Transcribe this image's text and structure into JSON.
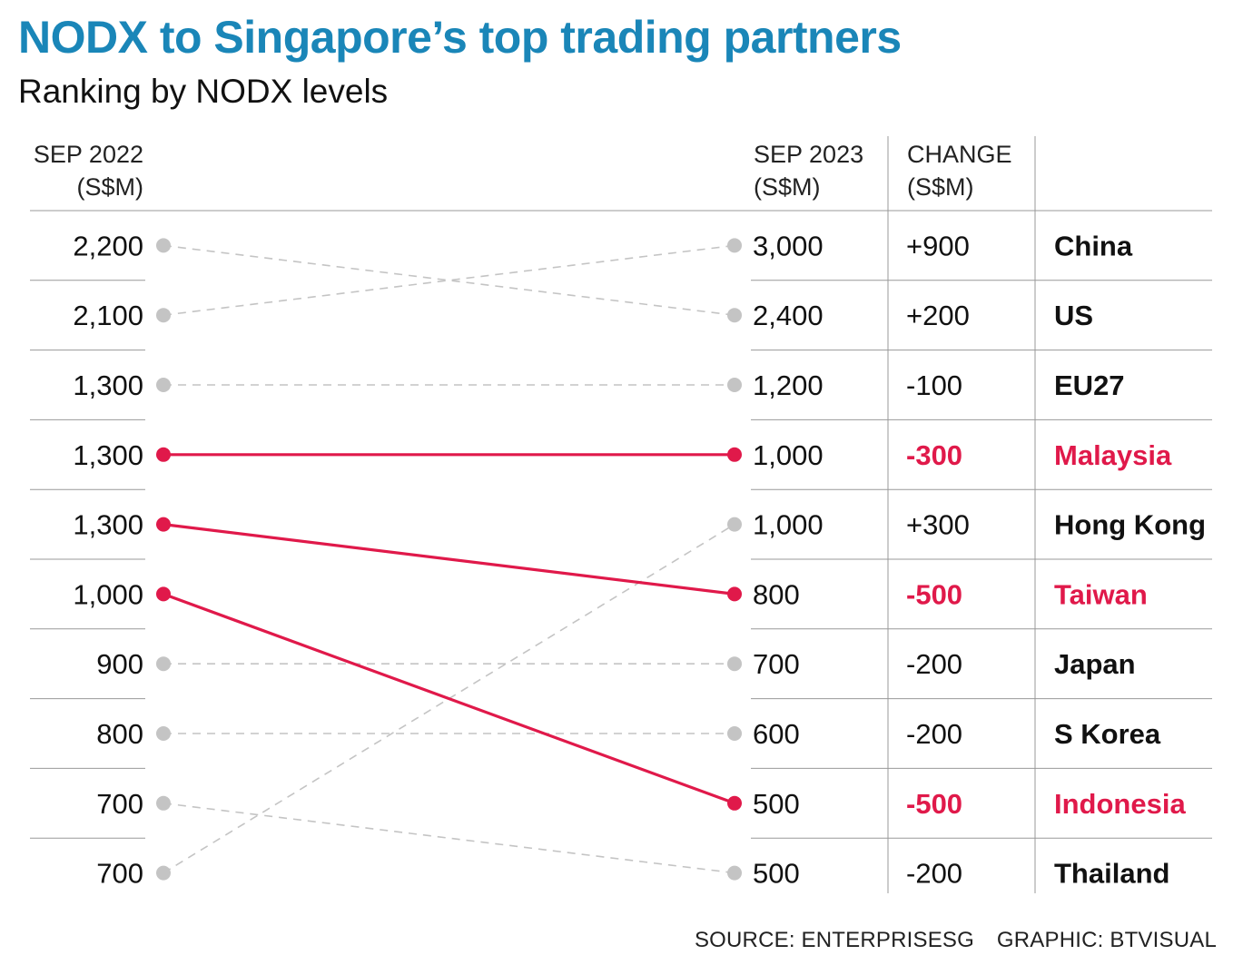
{
  "title": "NODX to Singapore’s top trading partners",
  "subtitle": "Ranking by NODX levels",
  "headers": {
    "left_line1": "SEP 2022",
    "left_line2": "(S$M)",
    "mid_line1": "SEP 2023",
    "mid_line2": "(S$M)",
    "change_line1": "CHANGE",
    "change_line2": "(S$M)"
  },
  "colors": {
    "highlight": "#e0194a",
    "muted": "#c4c4c4",
    "title": "#1a86b8",
    "rule": "#999999"
  },
  "chart_data": {
    "type": "slope",
    "title": "NODX to Singapore’s top trading partners",
    "subtitle": "Ranking by NODX levels",
    "left_ranking_2022": [
      "2,200",
      "2,100",
      "1,300",
      "1,300",
      "1,300",
      "1,000",
      "900",
      "800",
      "700",
      "700"
    ],
    "right_ranking_2023": [
      "3,000",
      "2,400",
      "1,200",
      "1,000",
      "1,000",
      "800",
      "700",
      "600",
      "500",
      "500"
    ],
    "partners": [
      {
        "name": "China",
        "sep2022": 2100,
        "sep2023": 3000,
        "change": "+900",
        "rank2022": 2,
        "rank2023": 1,
        "highlight": false
      },
      {
        "name": "US",
        "sep2022": 2200,
        "sep2023": 2400,
        "change": "+200",
        "rank2022": 1,
        "rank2023": 2,
        "highlight": false
      },
      {
        "name": "EU27",
        "sep2022": 1300,
        "sep2023": 1200,
        "change": "-100",
        "rank2022": 3,
        "rank2023": 3,
        "highlight": false
      },
      {
        "name": "Malaysia",
        "sep2022": 1300,
        "sep2023": 1000,
        "change": "-300",
        "rank2022": 4,
        "rank2023": 4,
        "highlight": true
      },
      {
        "name": "Hong Kong",
        "sep2022": 700,
        "sep2023": 1000,
        "change": "+300",
        "rank2022": 10,
        "rank2023": 5,
        "highlight": false
      },
      {
        "name": "Taiwan",
        "sep2022": 1300,
        "sep2023": 800,
        "change": "-500",
        "rank2022": 5,
        "rank2023": 6,
        "highlight": true
      },
      {
        "name": "Japan",
        "sep2022": 900,
        "sep2023": 700,
        "change": "-200",
        "rank2022": 7,
        "rank2023": 7,
        "highlight": false
      },
      {
        "name": "S Korea",
        "sep2022": 800,
        "sep2023": 600,
        "change": "-200",
        "rank2022": 8,
        "rank2023": 8,
        "highlight": false
      },
      {
        "name": "Indonesia",
        "sep2022": 1000,
        "sep2023": 500,
        "change": "-500",
        "rank2022": 6,
        "rank2023": 9,
        "highlight": true
      },
      {
        "name": "Thailand",
        "sep2022": 700,
        "sep2023": 500,
        "change": "-200",
        "rank2022": 9,
        "rank2023": 10,
        "highlight": false
      }
    ]
  },
  "footer": {
    "source": "SOURCE: ENTERPRISESG",
    "graphic": "GRAPHIC: BTVISUAL"
  }
}
